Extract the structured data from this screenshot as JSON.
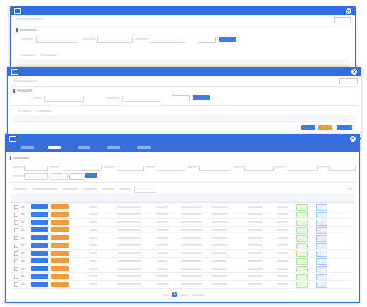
{
  "background": "#ffffff",
  "title_bar_color": "#2f6fe0",
  "accent_color": "#3b7ae8",
  "warning_color": "#f19a3e",
  "back_window": {
    "title": "",
    "close_icon": "close-icon"
  },
  "middle_window": {
    "title": "",
    "close_icon": "close-icon"
  },
  "front_window": {
    "title": "",
    "close_icon": "close-icon",
    "nav_tabs": [
      "",
      "",
      "",
      "",
      ""
    ],
    "selected_tab": 1,
    "page_indicator": "1",
    "table_row_count": 11
  }
}
